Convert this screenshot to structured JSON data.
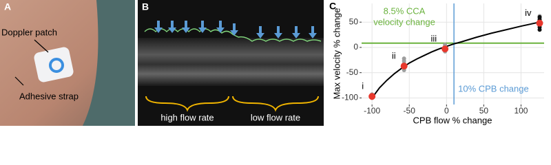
{
  "panels": {
    "a": {
      "letter": "A",
      "labels": [
        "Doppler patch",
        "Adhesive strap"
      ]
    },
    "b": {
      "letter": "B",
      "labels": [
        "high flow rate",
        "low flow rate"
      ]
    }
  },
  "chart_data": {
    "type": "scatter",
    "letter": "C",
    "x_label": "CPB flow % change",
    "y_label": "Max velocity % change",
    "xlim": [
      -114,
      131
    ],
    "ylim": [
      -113,
      87
    ],
    "xticks": [
      -100,
      -50,
      0,
      50,
      100
    ],
    "yticks": [
      -100,
      -50,
      0,
      50
    ],
    "grid": true,
    "curve": {
      "color": "#000000",
      "x": [
        -100,
        -90,
        -80,
        -70,
        -60,
        -50,
        -40,
        -30,
        -20,
        -10,
        0,
        10,
        20,
        40,
        60,
        80,
        100,
        125
      ],
      "values": [
        -100,
        -80,
        -65,
        -52,
        -41,
        -31,
        -23,
        -16,
        -9,
        -3,
        2,
        7,
        11,
        20,
        28,
        35,
        42,
        50
      ]
    },
    "series": [
      {
        "color": "#9e9e9e",
        "x": [
          -100,
          -100,
          -57,
          -57,
          -57,
          -57,
          -57,
          -2,
          -2,
          -2,
          -2,
          125,
          125
        ],
        "values": [
          -93,
          -100,
          -22,
          -27,
          -32,
          -42,
          -45,
          -8,
          -4,
          2,
          5,
          62,
          58
        ]
      },
      {
        "color": "#111111",
        "x": [
          125,
          125,
          125,
          125,
          125,
          125
        ],
        "values": [
          35,
          40,
          45,
          52,
          55,
          60
        ]
      },
      {
        "color": "#e8372c",
        "x": [
          -100,
          -57,
          -2,
          125
        ],
        "values": [
          -97,
          -37,
          -3,
          48
        ]
      }
    ],
    "point_labels": [
      "i",
      "ii",
      "iii",
      "iv"
    ],
    "hline": {
      "value": 8.5,
      "color": "#6ab23d",
      "label_lines": [
        "8.5% CCA",
        "velocity change"
      ]
    },
    "vline": {
      "value": 10,
      "color": "#5b9bd5",
      "label": "10% CPB change"
    }
  }
}
